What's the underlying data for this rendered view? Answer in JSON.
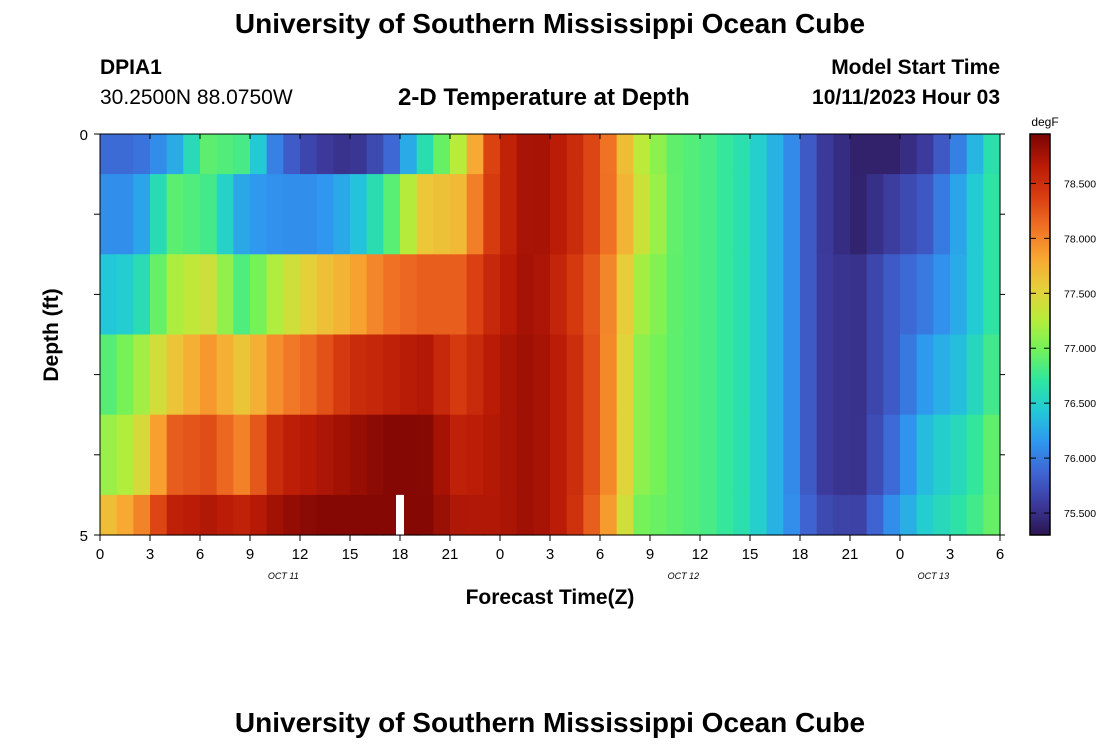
{
  "header": {
    "title": "University of Southern Mississippi Ocean Cube",
    "station": "DPIA1",
    "coords": "30.2500N  88.0750W",
    "subtitle": "2-D Temperature at Depth",
    "model_start_label": "Model Start Time",
    "model_start_value": "10/11/2023 Hour 03"
  },
  "footer": {
    "title": "University of Southern Mississippi Ocean Cube"
  },
  "chart_data": {
    "type": "heatmap",
    "title": "2-D Temperature at Depth",
    "xlabel": "Forecast Time(Z)",
    "ylabel": "Depth (ft)",
    "x_start_hour": 0,
    "x_end_hour": 54,
    "x_ticks": [
      "0",
      "3",
      "6",
      "9",
      "12",
      "15",
      "18",
      "21",
      "0",
      "3",
      "6",
      "9",
      "12",
      "15",
      "18",
      "21",
      "0",
      "3",
      "6"
    ],
    "day_labels": [
      {
        "hour": 11,
        "text": "OCT 11"
      },
      {
        "hour": 35,
        "text": "OCT 12"
      },
      {
        "hour": 50,
        "text": "OCT 13"
      }
    ],
    "y_range": [
      0,
      5
    ],
    "y_tick_labels": [
      "0",
      "5"
    ],
    "rows": [
      0,
      1,
      2,
      3,
      4,
      5
    ],
    "colorbar": {
      "unit": "degF",
      "min": 75.3,
      "max": 78.95,
      "ticks": [
        "75.500",
        "76.000",
        "76.500",
        "77.000",
        "77.500",
        "78.000",
        "78.500"
      ],
      "colors": [
        "#2b1450",
        "#3c3a9c",
        "#3f64d2",
        "#2f96f0",
        "#22c8d8",
        "#2ee6a0",
        "#72f25a",
        "#b8ec3a",
        "#e6d03a",
        "#f8a632",
        "#f07024",
        "#d83c10",
        "#b81a06",
        "#7a0404"
      ]
    },
    "marker_hour": 18,
    "temperatures_degF": [
      [
        75.9,
        75.9,
        76.2,
        76.9,
        76.8,
        75.9,
        75.6,
        75.5,
        75.8,
        76.6,
        77.3,
        78.5,
        78.8,
        78.6,
        78.2,
        77.3,
        76.9,
        76.8,
        76.6,
        76.2,
        75.6,
        75.4,
        75.4,
        75.6,
        76.1,
        76.8
      ],
      [
        76.1,
        76.1,
        76.9,
        76.8,
        76.2,
        76.1,
        76.1,
        76.3,
        76.8,
        77.6,
        77.7,
        78.5,
        78.8,
        78.6,
        78.2,
        77.4,
        76.9,
        76.8,
        76.6,
        76.2,
        75.6,
        75.4,
        75.6,
        75.8,
        76.3,
        76.8
      ],
      [
        76.4,
        76.5,
        77.2,
        77.4,
        76.8,
        77.3,
        77.6,
        77.8,
        78.1,
        78.2,
        78.2,
        78.6,
        78.8,
        78.5,
        78.1,
        77.2,
        76.9,
        76.8,
        76.6,
        76.2,
        75.6,
        75.5,
        75.8,
        76.0,
        76.3,
        76.8
      ],
      [
        76.8,
        77.1,
        77.6,
        77.9,
        77.6,
        78.0,
        78.2,
        78.5,
        78.6,
        78.7,
        78.4,
        78.7,
        78.8,
        78.6,
        78.1,
        77.1,
        76.9,
        76.8,
        76.6,
        76.2,
        75.6,
        75.5,
        75.8,
        76.2,
        76.4,
        76.9
      ],
      [
        77.1,
        77.3,
        78.2,
        78.3,
        78.0,
        78.6,
        78.7,
        78.8,
        78.9,
        78.9,
        78.6,
        78.7,
        78.8,
        78.6,
        78.1,
        77.1,
        76.9,
        76.8,
        76.6,
        76.2,
        75.6,
        75.5,
        75.9,
        76.4,
        76.6,
        77.0
      ],
      [
        77.6,
        77.9,
        78.6,
        78.7,
        78.6,
        78.8,
        78.9,
        78.9,
        78.9,
        78.9,
        78.7,
        78.7,
        78.8,
        78.6,
        78.0,
        77.0,
        76.9,
        76.8,
        76.6,
        76.2,
        75.7,
        75.6,
        76.1,
        76.5,
        76.7,
        77.0
      ]
    ]
  }
}
